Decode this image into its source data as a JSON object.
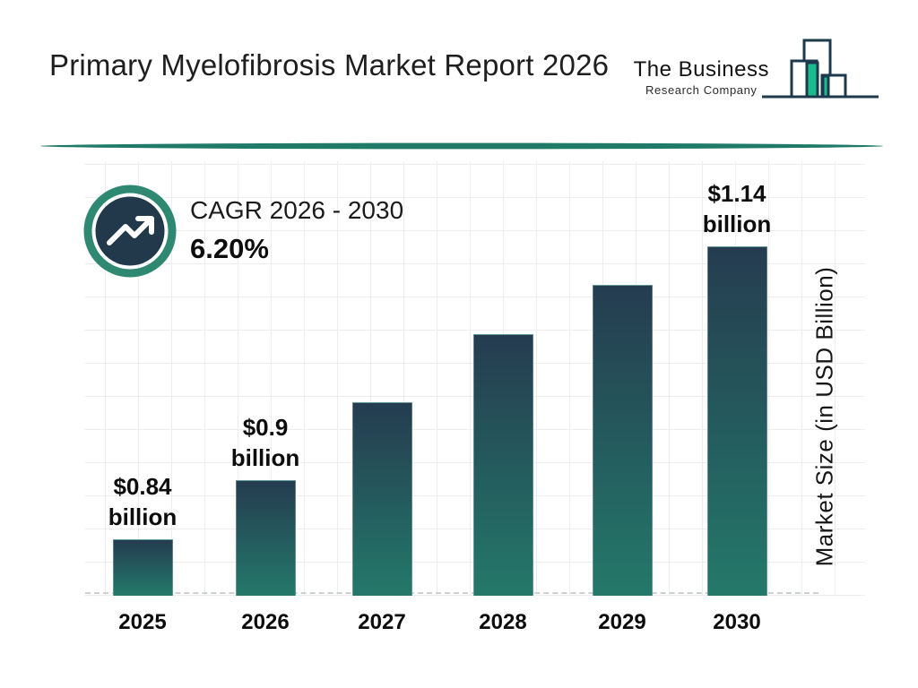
{
  "header": {
    "title": "Primary Myelofibrosis Market Report 2026",
    "logo": {
      "line1": "The Business",
      "line2": "Research Company"
    }
  },
  "cagr": {
    "label": "CAGR 2026 - 2030",
    "value": "6.20%"
  },
  "chart_data": {
    "type": "bar",
    "title": "Primary Myelofibrosis Market Report 2026",
    "categories": [
      "2025",
      "2026",
      "2027",
      "2028",
      "2029",
      "2030"
    ],
    "values": [
      0.84,
      0.9,
      0.98,
      1.05,
      1.1,
      1.14
    ],
    "value_labels": [
      "$0.84 billion",
      "$0.9 billion",
      "",
      "",
      "",
      "$1.14 billion"
    ],
    "xlabel": "",
    "ylabel": "Market Size (in USD Billion)",
    "ylim": [
      0.78,
      1.16
    ],
    "grid": true,
    "legend_position": "none",
    "baseline_style": "dashed",
    "notes": "values for 2027-2029 estimated from bar heights; labeled values are $0.84b (2025), $0.9b (2026), $1.14b (2030)"
  },
  "colors": {
    "bar_top": "#253c50",
    "bar_bottom": "#24796a",
    "divider": "#1f7a68",
    "badge_ring": "#2e8872",
    "badge_inner": "#22394b",
    "badge_arrow": "#ffffff",
    "logo_outline": "#1d3a4d",
    "logo_green": "#1abc8e",
    "grid_line": "#ebedee",
    "dash_line": "#cdd0d3",
    "text": "#1c1c1c"
  }
}
